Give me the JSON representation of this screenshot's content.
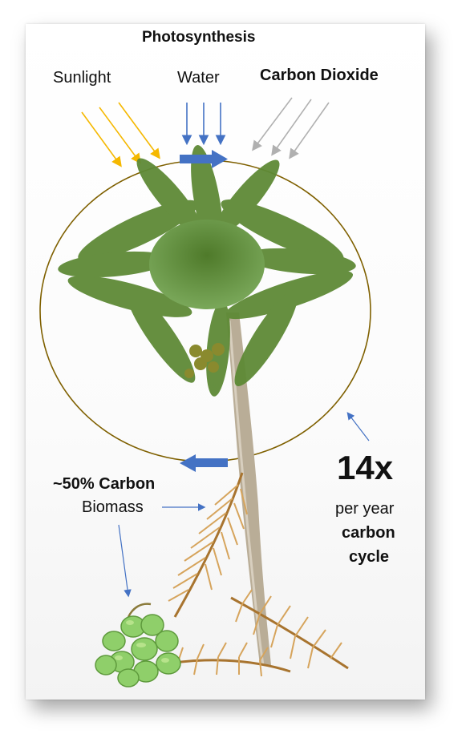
{
  "diagram": {
    "title": "Photosynthesis",
    "inputs": {
      "sunlight": "Sunlight",
      "water": "Water",
      "carbon_dioxide": "Carbon Dioxide"
    },
    "carbon_share": "~50% Carbon",
    "biomass": "Biomass",
    "multiplier": "14x",
    "multiplier_line1": "per year",
    "multiplier_line2": "carbon",
    "multiplier_line3": "cycle"
  },
  "colors": {
    "sunlight_arrows": "#f5b800",
    "water_arrows": "#4472c4",
    "co2_arrows": "#b0b0b0",
    "cycle_circle": "#7f6000",
    "cycle_arrows": "#4472c4",
    "pointer_arrows": "#4472c4"
  },
  "icons": {
    "tree": "coconut-palm-icon",
    "fronds": "dry-palm-frond-icon",
    "coconuts": "coconut-bunch-icon"
  }
}
